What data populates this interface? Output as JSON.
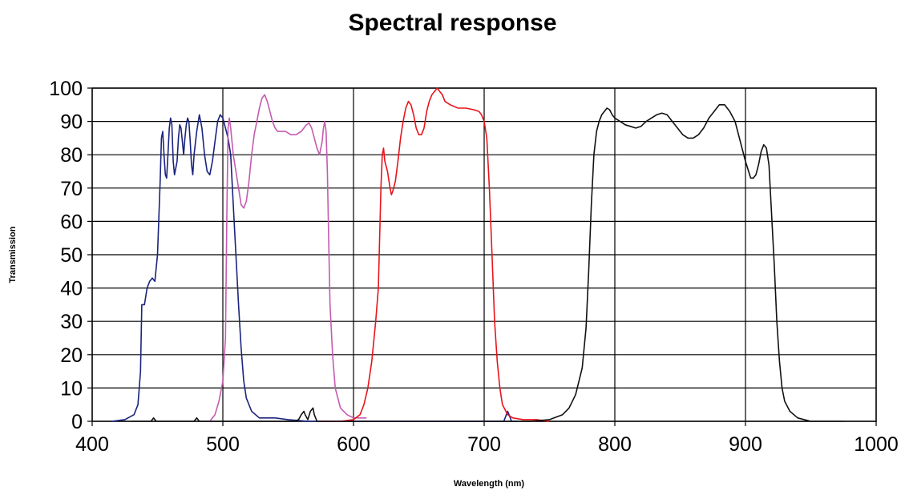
{
  "chart_data": {
    "type": "line",
    "title": "Spectral response",
    "xlabel": "Wavelength (nm)",
    "ylabel": "Transmission",
    "xlim": [
      400,
      1000
    ],
    "ylim": [
      0,
      100
    ],
    "xticks": [
      400,
      500,
      600,
      700,
      800,
      900,
      1000
    ],
    "yticks": [
      0,
      10,
      20,
      30,
      40,
      50,
      60,
      70,
      80,
      90,
      100
    ],
    "grid": true,
    "series": [
      {
        "color": "#1a237e",
        "points": [
          [
            415,
            0
          ],
          [
            425,
            0.5
          ],
          [
            432,
            2
          ],
          [
            435,
            5
          ],
          [
            437,
            15
          ],
          [
            438,
            35
          ],
          [
            440,
            35
          ],
          [
            442,
            40
          ],
          [
            444,
            42
          ],
          [
            446,
            43
          ],
          [
            448,
            42
          ],
          [
            450,
            50
          ],
          [
            452,
            72
          ],
          [
            453,
            85
          ],
          [
            454,
            87
          ],
          [
            455,
            80
          ],
          [
            456,
            74
          ],
          [
            457,
            73
          ],
          [
            458,
            80
          ],
          [
            459,
            88
          ],
          [
            460,
            91
          ],
          [
            461,
            89
          ],
          [
            462,
            78
          ],
          [
            463,
            74
          ],
          [
            464,
            76
          ],
          [
            465,
            78
          ],
          [
            466,
            85
          ],
          [
            467,
            89
          ],
          [
            468,
            88
          ],
          [
            469,
            84
          ],
          [
            470,
            80
          ],
          [
            471,
            85
          ],
          [
            472,
            89
          ],
          [
            473,
            91
          ],
          [
            474,
            90
          ],
          [
            475,
            84
          ],
          [
            476,
            77
          ],
          [
            477,
            74
          ],
          [
            478,
            80
          ],
          [
            480,
            87
          ],
          [
            482,
            92
          ],
          [
            484,
            88
          ],
          [
            486,
            80
          ],
          [
            488,
            75
          ],
          [
            490,
            74
          ],
          [
            492,
            78
          ],
          [
            494,
            84
          ],
          [
            496,
            90
          ],
          [
            498,
            92
          ],
          [
            500,
            91
          ],
          [
            502,
            88
          ],
          [
            504,
            85
          ],
          [
            506,
            80
          ],
          [
            508,
            65
          ],
          [
            510,
            50
          ],
          [
            512,
            35
          ],
          [
            514,
            22
          ],
          [
            516,
            12
          ],
          [
            518,
            7
          ],
          [
            522,
            3
          ],
          [
            528,
            1
          ],
          [
            540,
            1
          ],
          [
            550,
            0.5
          ],
          [
            565,
            0
          ],
          [
            600,
            0
          ],
          [
            618,
            0
          ],
          [
            715,
            0
          ],
          [
            717,
            2
          ],
          [
            718,
            3
          ],
          [
            719,
            2
          ],
          [
            721,
            0
          ],
          [
            725,
            0
          ]
        ]
      },
      {
        "color": "#c45bb0",
        "points": [
          [
            490,
            0
          ],
          [
            494,
            2
          ],
          [
            497,
            6
          ],
          [
            500,
            12
          ],
          [
            502,
            25
          ],
          [
            503,
            60
          ],
          [
            504,
            88
          ],
          [
            505,
            91
          ],
          [
            506,
            88
          ],
          [
            508,
            80
          ],
          [
            510,
            75
          ],
          [
            512,
            70
          ],
          [
            514,
            65
          ],
          [
            516,
            64
          ],
          [
            518,
            66
          ],
          [
            520,
            72
          ],
          [
            522,
            80
          ],
          [
            524,
            86
          ],
          [
            526,
            90
          ],
          [
            528,
            94
          ],
          [
            530,
            97
          ],
          [
            532,
            98
          ],
          [
            534,
            96
          ],
          [
            536,
            93
          ],
          [
            538,
            90
          ],
          [
            540,
            88
          ],
          [
            542,
            87
          ],
          [
            544,
            87
          ],
          [
            548,
            87
          ],
          [
            552,
            86
          ],
          [
            556,
            86
          ],
          [
            560,
            87
          ],
          [
            564,
            89
          ],
          [
            566,
            89.5
          ],
          [
            568,
            88
          ],
          [
            570,
            85
          ],
          [
            572,
            82
          ],
          [
            574,
            80
          ],
          [
            576,
            84
          ],
          [
            577,
            88
          ],
          [
            578,
            90
          ],
          [
            579,
            87
          ],
          [
            580,
            75
          ],
          [
            581,
            55
          ],
          [
            582,
            35
          ],
          [
            584,
            20
          ],
          [
            586,
            10
          ],
          [
            590,
            4
          ],
          [
            595,
            2
          ],
          [
            600,
            1
          ],
          [
            610,
            1
          ]
        ]
      },
      {
        "color": "#e8141b",
        "points": [
          [
            575,
            0
          ],
          [
            590,
            0
          ],
          [
            600,
            0.5
          ],
          [
            605,
            2
          ],
          [
            608,
            5
          ],
          [
            611,
            10
          ],
          [
            614,
            18
          ],
          [
            617,
            30
          ],
          [
            619,
            40
          ],
          [
            620,
            55
          ],
          [
            621,
            70
          ],
          [
            622,
            80
          ],
          [
            623,
            82
          ],
          [
            624,
            78
          ],
          [
            626,
            75
          ],
          [
            628,
            70
          ],
          [
            629,
            68
          ],
          [
            630,
            69
          ],
          [
            632,
            72
          ],
          [
            634,
            78
          ],
          [
            636,
            85
          ],
          [
            638,
            90
          ],
          [
            640,
            94
          ],
          [
            642,
            96
          ],
          [
            644,
            95
          ],
          [
            646,
            92
          ],
          [
            648,
            88
          ],
          [
            650,
            86
          ],
          [
            652,
            86
          ],
          [
            654,
            88
          ],
          [
            656,
            93
          ],
          [
            658,
            96
          ],
          [
            660,
            98
          ],
          [
            662,
            99
          ],
          [
            664,
            100
          ],
          [
            666,
            99
          ],
          [
            668,
            98
          ],
          [
            670,
            96
          ],
          [
            674,
            95
          ],
          [
            680,
            94
          ],
          [
            686,
            94
          ],
          [
            692,
            93.5
          ],
          [
            696,
            93
          ],
          [
            698,
            92
          ],
          [
            700,
            90
          ],
          [
            702,
            85
          ],
          [
            704,
            70
          ],
          [
            706,
            50
          ],
          [
            708,
            30
          ],
          [
            710,
            18
          ],
          [
            712,
            10
          ],
          [
            714,
            5
          ],
          [
            718,
            2
          ],
          [
            722,
            1
          ],
          [
            730,
            0.5
          ],
          [
            740,
            0.5
          ],
          [
            750,
            0
          ]
        ]
      },
      {
        "color": "#111111",
        "points": [
          [
            430,
            0
          ],
          [
            445,
            0
          ],
          [
            447,
            1
          ],
          [
            449,
            0
          ],
          [
            478,
            0
          ],
          [
            480,
            1
          ],
          [
            482,
            0
          ],
          [
            555,
            0
          ],
          [
            558,
            0.5
          ],
          [
            560,
            2
          ],
          [
            562,
            3
          ],
          [
            563,
            2
          ],
          [
            565,
            0.5
          ],
          [
            567,
            3
          ],
          [
            569,
            4
          ],
          [
            570,
            2
          ],
          [
            572,
            0
          ],
          [
            580,
            0
          ],
          [
            620,
            0
          ],
          [
            735,
            0
          ],
          [
            750,
            0.5
          ],
          [
            760,
            2
          ],
          [
            765,
            4
          ],
          [
            770,
            8
          ],
          [
            775,
            16
          ],
          [
            778,
            28
          ],
          [
            780,
            45
          ],
          [
            782,
            65
          ],
          [
            784,
            80
          ],
          [
            786,
            87
          ],
          [
            788,
            90
          ],
          [
            790,
            92
          ],
          [
            792,
            93
          ],
          [
            794,
            94
          ],
          [
            796,
            93.5
          ],
          [
            798,
            92
          ],
          [
            800,
            91
          ],
          [
            804,
            90
          ],
          [
            808,
            89
          ],
          [
            812,
            88.5
          ],
          [
            816,
            88
          ],
          [
            820,
            88.5
          ],
          [
            824,
            90
          ],
          [
            828,
            91
          ],
          [
            832,
            92
          ],
          [
            836,
            92.5
          ],
          [
            840,
            92
          ],
          [
            844,
            90
          ],
          [
            848,
            88
          ],
          [
            852,
            86
          ],
          [
            856,
            85
          ],
          [
            860,
            85
          ],
          [
            864,
            86
          ],
          [
            868,
            88
          ],
          [
            872,
            91
          ],
          [
            876,
            93
          ],
          [
            880,
            95
          ],
          [
            884,
            95
          ],
          [
            888,
            93
          ],
          [
            892,
            90
          ],
          [
            896,
            84
          ],
          [
            900,
            78
          ],
          [
            904,
            73
          ],
          [
            906,
            73
          ],
          [
            908,
            74
          ],
          [
            910,
            77
          ],
          [
            912,
            81
          ],
          [
            914,
            83
          ],
          [
            916,
            82
          ],
          [
            918,
            77
          ],
          [
            920,
            62
          ],
          [
            922,
            47
          ],
          [
            924,
            30
          ],
          [
            926,
            18
          ],
          [
            928,
            10
          ],
          [
            930,
            6
          ],
          [
            934,
            3
          ],
          [
            940,
            1
          ],
          [
            950,
            0
          ],
          [
            975,
            0
          ]
        ]
      }
    ]
  }
}
